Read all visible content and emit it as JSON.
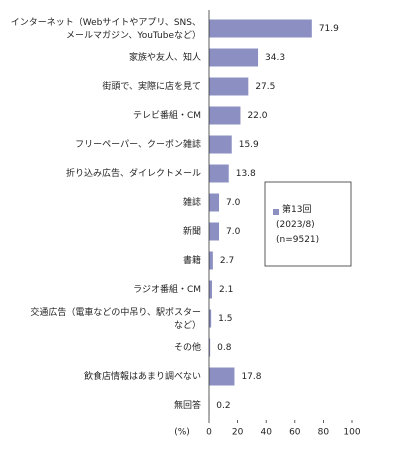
{
  "chart_data": {
    "type": "barh",
    "categories": [
      "インターネット（Webサイトやアプリ、SNS、\nメールマガジン、YouTubeなど）",
      "家族や友人、知人",
      "街頭で、実際に店を見て",
      "テレビ番組・CM",
      "フリーペーパー、クーポン雑誌",
      "折り込み広告、ダイレクトメール",
      "雑誌",
      "新聞",
      "書籍",
      "ラジオ番組・CM",
      "交通広告（電車などの中吊り、駅ポスター\nなど）",
      "その他",
      "飲食店情報はあまり調べない",
      "無回答"
    ],
    "series": [
      {
        "name": "第13回\n(2023/8)\n(n=9521)",
        "color": "#8c8fc2",
        "values": [
          71.9,
          34.3,
          27.5,
          22.0,
          15.9,
          13.8,
          7.0,
          7.0,
          2.7,
          2.1,
          1.5,
          0.8,
          17.8,
          0.2
        ],
        "value_labels": [
          "71.9",
          "34.3",
          "27.5",
          "22.0",
          "15.9",
          "13.8",
          "7.0",
          "7.0",
          "2.7",
          "2.1",
          "1.5",
          "0.8",
          "17.8",
          "0.2"
        ]
      }
    ],
    "xlabel": "(%)",
    "xlim": [
      0,
      100
    ],
    "xticks": [
      0,
      20,
      40,
      60,
      80,
      100
    ]
  }
}
